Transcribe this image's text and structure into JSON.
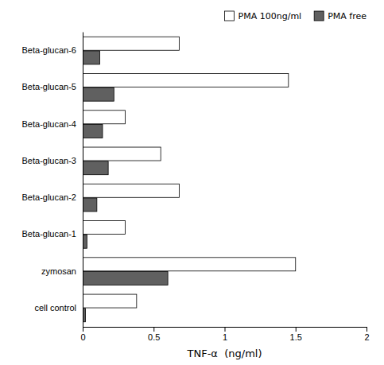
{
  "chart_data": {
    "type": "bar",
    "orientation": "horizontal",
    "categories": [
      "Beta-glucan-6",
      "Beta-glucan-5",
      "Beta-glucan-4",
      "Beta-glucan-3",
      "Beta-glucan-2",
      "Beta-glucan-1",
      "zymosan",
      "cell control"
    ],
    "series": [
      {
        "name": "PMA 100ng/ml",
        "color": "#ffffff",
        "values": [
          0.68,
          1.45,
          0.3,
          0.55,
          0.68,
          0.3,
          1.5,
          0.38
        ]
      },
      {
        "name": "PMA free",
        "color": "#606060",
        "values": [
          0.12,
          0.22,
          0.14,
          0.18,
          0.1,
          0.03,
          0.6,
          0.02
        ]
      }
    ],
    "xlabel": "TNF-α  (ng/ml)",
    "xlim": [
      0,
      2
    ],
    "xticks": [
      0,
      0.5,
      1,
      1.5,
      2
    ],
    "legend": "upper right",
    "grid": false
  }
}
